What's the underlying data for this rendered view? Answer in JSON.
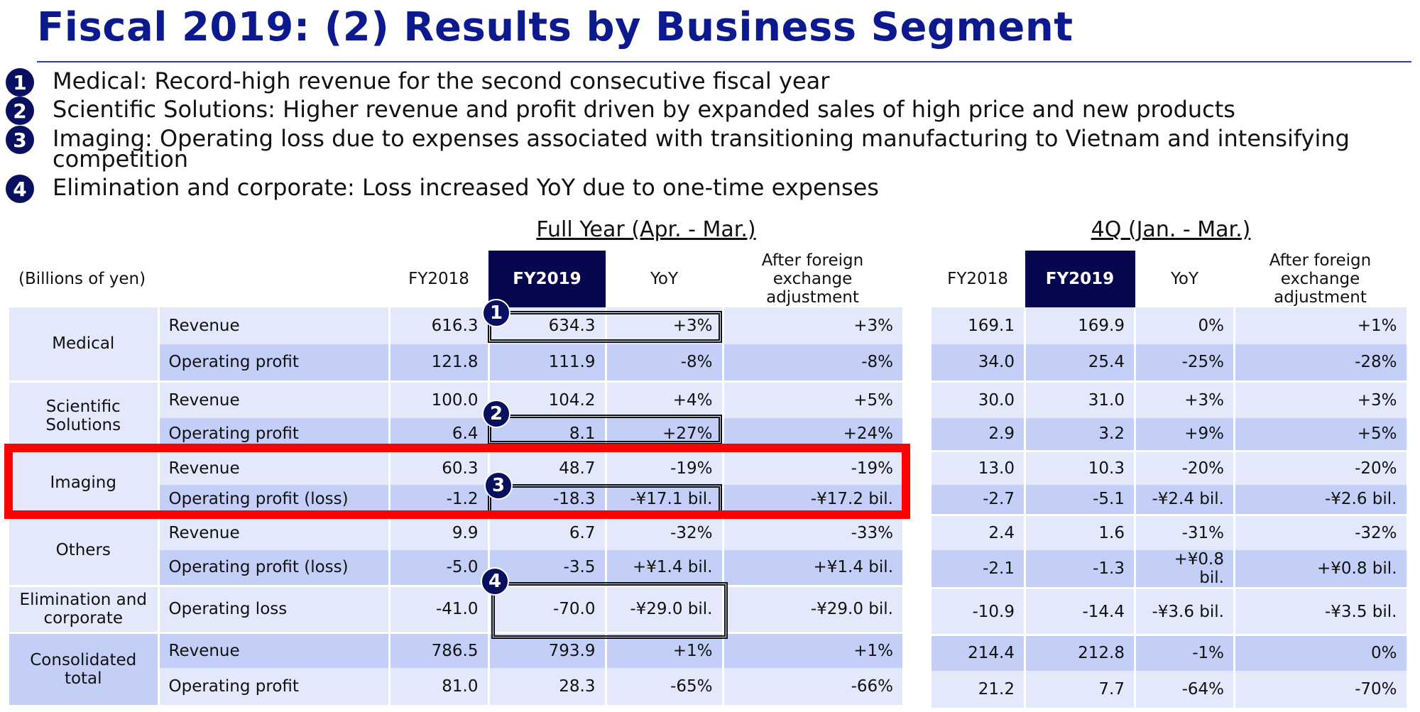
{
  "title": "Fiscal 2019: (2) Results by Business Segment",
  "bullets": [
    {
      "num": "1",
      "text": "Medical: Record-high revenue for the second consecutive fiscal year"
    },
    {
      "num": "2",
      "text": "Scientific Solutions: Higher revenue and profit driven by expanded sales of high price and new products"
    },
    {
      "num": "3",
      "text": "Imaging: Operating loss due to expenses associated with transitioning manufacturing to Vietnam and intensifying competition"
    },
    {
      "num": "4",
      "text": "Elimination and corporate: Loss increased YoY due to one-time expenses"
    }
  ],
  "full_year": {
    "title": "Full Year (Apr. - Mar.)",
    "unit": "(Billions of yen)",
    "headers": [
      "FY2018",
      "FY2019",
      "YoY",
      "After foreign exchange adjustment"
    ],
    "rows": [
      {
        "seg": "Medical",
        "item": "Revenue",
        "v": [
          "616.3",
          "634.3",
          "+3%",
          "+3%"
        ]
      },
      {
        "item": "Operating profit",
        "v": [
          "121.8",
          "111.9",
          "-8%",
          "-8%"
        ]
      },
      {
        "seg": "Scientific Solutions",
        "item": "Revenue",
        "v": [
          "100.0",
          "104.2",
          "+4%",
          "+5%"
        ]
      },
      {
        "item": "Operating profit",
        "v": [
          "6.4",
          "8.1",
          "+27%",
          "+24%"
        ]
      },
      {
        "seg": "Imaging",
        "item": "Revenue",
        "v": [
          "60.3",
          "48.7",
          "-19%",
          "-19%"
        ]
      },
      {
        "item": "Operating profit (loss)",
        "v": [
          "-1.2",
          "-18.3",
          "-¥17.1 bil.",
          "-¥17.2 bil."
        ]
      },
      {
        "seg": "Others",
        "item": "Revenue",
        "v": [
          "9.9",
          "6.7",
          "-32%",
          "-33%"
        ]
      },
      {
        "item": "Operating profit (loss)",
        "v": [
          "-5.0",
          "-3.5",
          "+¥1.4 bil.",
          "+¥1.4 bil."
        ]
      },
      {
        "seg": "Elimination and corporate",
        "item": "Operating loss",
        "v": [
          "-41.0",
          "-70.0",
          "-¥29.0 bil.",
          "-¥29.0 bil."
        ]
      },
      {
        "seg": "Consolidated total",
        "item": "Revenue",
        "v": [
          "786.5",
          "793.9",
          "+1%",
          "+1%"
        ]
      },
      {
        "item": "Operating profit",
        "v": [
          "81.0",
          "28.3",
          "-65%",
          "-66%"
        ]
      }
    ]
  },
  "q4": {
    "title": "4Q (Jan. - Mar.)",
    "headers": [
      "FY2018",
      "FY2019",
      "YoY",
      "After foreign exchange adjustment"
    ],
    "rows": [
      [
        "169.1",
        "169.9",
        "0%",
        "+1%"
      ],
      [
        "34.0",
        "25.4",
        "-25%",
        "-28%"
      ],
      [
        "30.0",
        "31.0",
        "+3%",
        "+3%"
      ],
      [
        "2.9",
        "3.2",
        "+9%",
        "+5%"
      ],
      [
        "13.0",
        "10.3",
        "-20%",
        "-20%"
      ],
      [
        "-2.7",
        "-5.1",
        "-¥2.4 bil.",
        "-¥2.6 bil."
      ],
      [
        "2.4",
        "1.6",
        "-31%",
        "-32%"
      ],
      [
        "-2.1",
        "-1.3",
        "+¥0.8 bil.",
        "+¥0.8 bil."
      ],
      [
        "-10.9",
        "-14.4",
        "-¥3.6 bil.",
        "-¥3.5 bil."
      ],
      [
        "214.4",
        "212.8",
        "-1%",
        "0%"
      ],
      [
        "21.2",
        "7.7",
        "-64%",
        "-70%"
      ]
    ]
  },
  "markers": [
    "1",
    "2",
    "3",
    "4"
  ],
  "colors": {
    "title": "#0d1a8f",
    "header_highlight": "#06074f",
    "row_light": "#e3e8fb",
    "row_dark": "#c3cff7",
    "highlight_box": "#ff0000"
  }
}
